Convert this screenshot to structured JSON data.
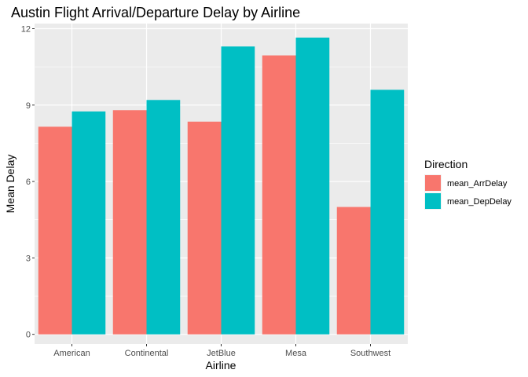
{
  "chart_data": {
    "type": "bar",
    "title": "Austin Flight Arrival/Departure Delay by Airline",
    "xlabel": "Airline",
    "ylabel": "Mean Delay",
    "categories": [
      "American",
      "Continental",
      "JetBlue",
      "Mesa",
      "Southwest"
    ],
    "series": [
      {
        "name": "mean_ArrDelay",
        "color": "#F8766D",
        "values": [
          8.15,
          8.8,
          8.35,
          10.95,
          5.0
        ]
      },
      {
        "name": "mean_DepDelay",
        "color": "#00BFC4",
        "values": [
          8.75,
          9.2,
          11.3,
          11.65,
          9.6
        ]
      }
    ],
    "yticks": [
      0,
      3,
      6,
      9,
      12
    ],
    "ylim": [
      -0.38,
      12.2
    ],
    "grid": true,
    "legend": {
      "title": "Direction",
      "position": "right"
    }
  }
}
